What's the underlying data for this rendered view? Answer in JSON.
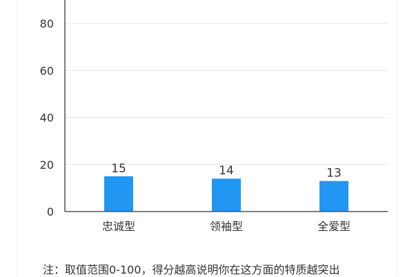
{
  "chart_data": {
    "type": "bar",
    "categories": [
      "忠诚型",
      "领袖型",
      "全爱型"
    ],
    "values": [
      15,
      14,
      13
    ],
    "data_labels": [
      "15",
      "14",
      "13"
    ],
    "ylim": [
      0,
      90
    ],
    "yticks": [
      0,
      20,
      40,
      60,
      80
    ],
    "ytick_labels": [
      "0",
      "20",
      "40",
      "60",
      "80"
    ],
    "grid": true,
    "bar_color": "#2196f3",
    "axis_color": "#555555",
    "grid_color": "#e6e6e6",
    "title": "",
    "xlabel": "",
    "ylabel": ""
  },
  "note": "注：取值范围0-100，得分越高说明你在这方面的特质越突出"
}
